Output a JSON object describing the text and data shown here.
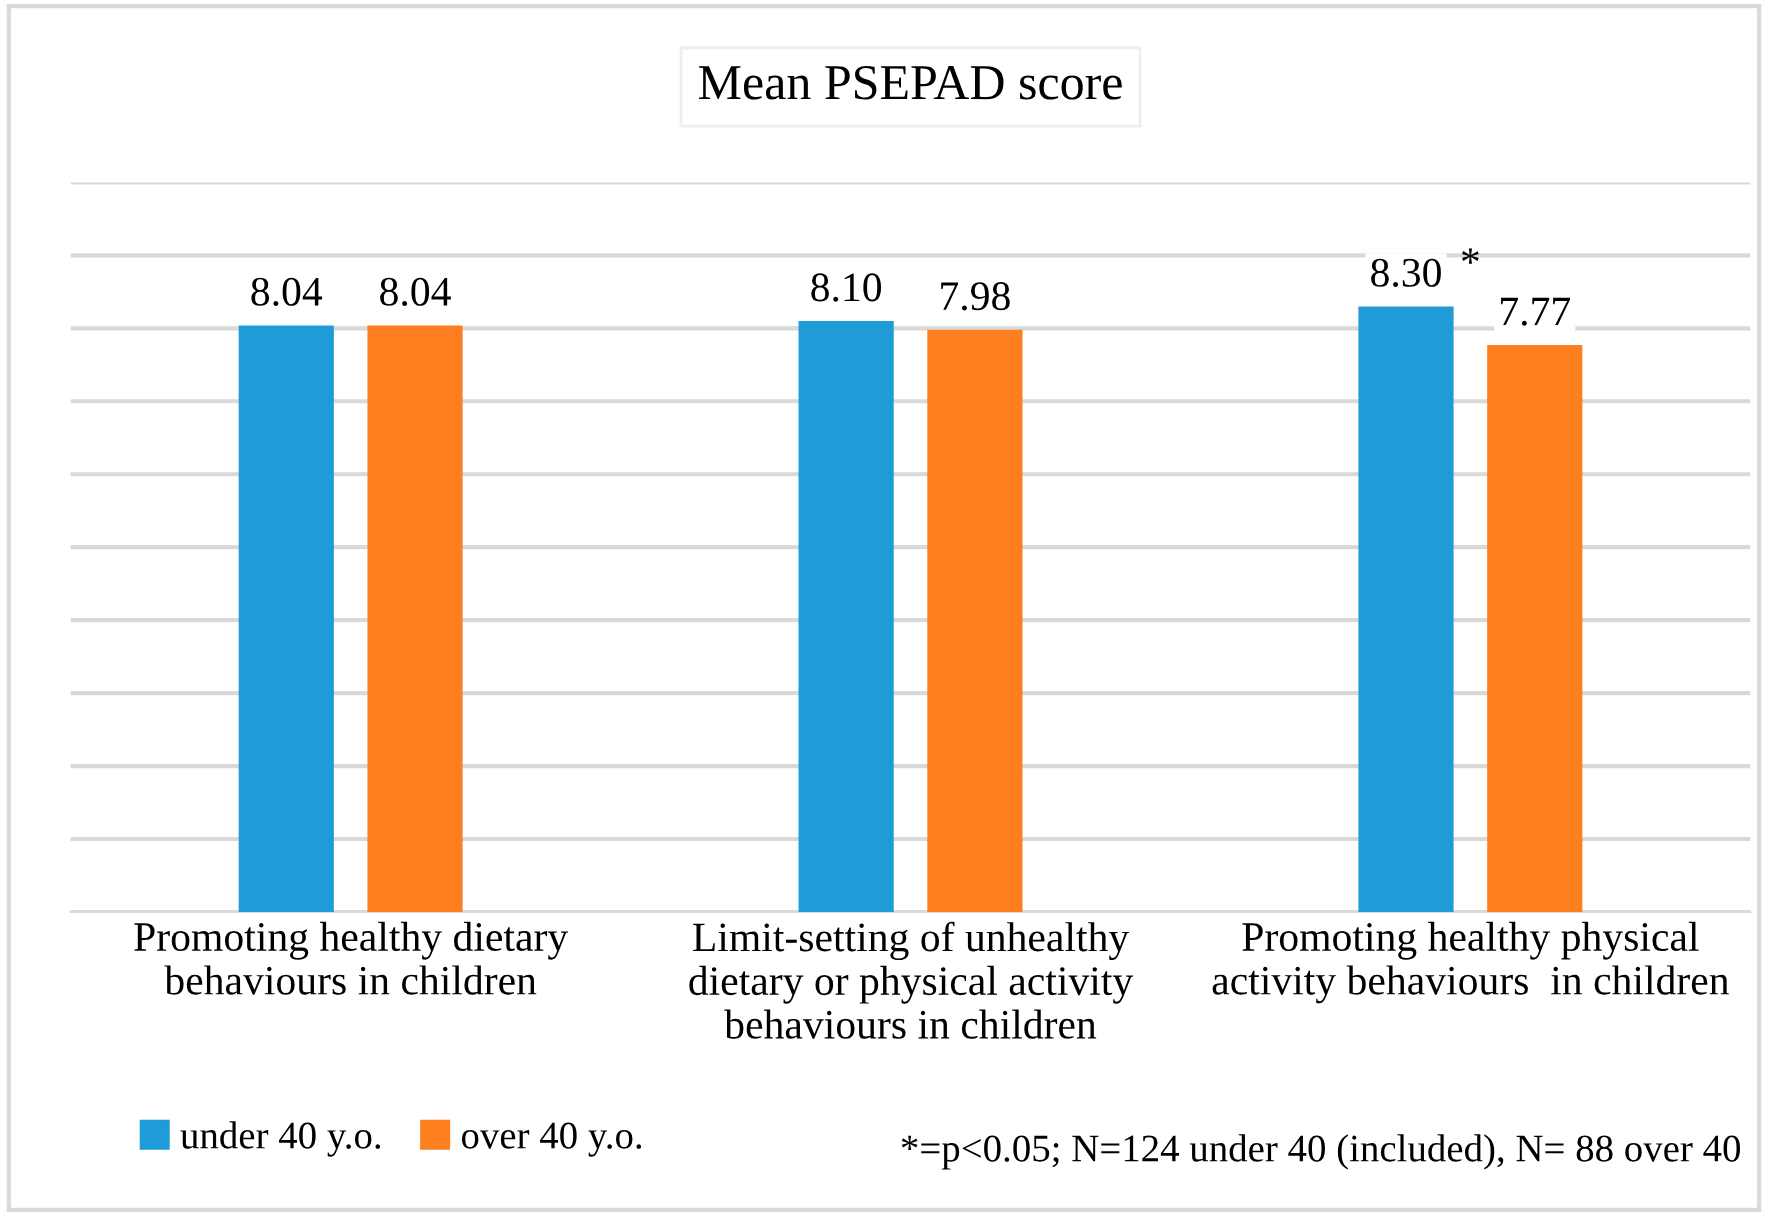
{
  "chart_data": {
    "type": "bar",
    "title": "Mean PSEPAD score",
    "categories": [
      "Promoting healthy dietary\nbehaviours in children",
      "Limit-setting of unhealthy\ndietary or physical activity\nbehaviours in children",
      "Promoting healthy physical\nactivity behaviours  in children"
    ],
    "series": [
      {
        "name": "under 40 y.o.",
        "color": "#1f9bd7",
        "values": [
          8.04,
          8.1,
          8.3
        ],
        "value_labels": [
          "8.04",
          "8.10",
          "8.30"
        ]
      },
      {
        "name": "over 40 y.o.",
        "color": "#fd7f20",
        "values": [
          8.04,
          7.98,
          7.77
        ],
        "value_labels": [
          "8.04",
          "7.98",
          "7.77"
        ]
      }
    ],
    "ylim": [
      0,
      10
    ],
    "yticks": [
      {
        "value": 0,
        "label": null
      },
      {
        "value": 1,
        "label": null
      },
      {
        "value": 2,
        "label": null
      },
      {
        "value": 3,
        "label": null
      },
      {
        "value": 4,
        "label": null
      },
      {
        "value": 5,
        "label": null
      },
      {
        "value": 6,
        "label": null
      },
      {
        "value": 7,
        "label": null
      },
      {
        "value": 8,
        "label": null
      },
      {
        "value": 9,
        "label": null
      },
      {
        "value": 10,
        "label": null
      }
    ],
    "grid": "y",
    "legend": "bottom left",
    "tick_labels": "x",
    "annotations": [
      "*",
      "*=p<0.05; N=124 under 40 (included), N= 88 over 40"
    ]
  }
}
